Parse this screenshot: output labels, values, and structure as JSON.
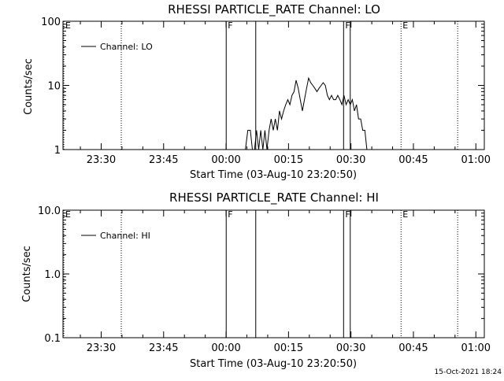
{
  "footer": "15-Oct-2021 18:24",
  "chart_data": [
    {
      "type": "line",
      "title": "RHESSI PARTICLE_RATE Channel: LO",
      "ylabel": "Counts/sec",
      "xlabel": "Start Time (03-Aug-10 23:20:50)",
      "yscale": "log",
      "ylim": [
        1,
        100
      ],
      "yticks": [
        {
          "value": 1,
          "label": "1"
        },
        {
          "value": 10,
          "label": "10"
        },
        {
          "value": 100,
          "label": "100"
        }
      ],
      "xlim_minutes": [
        0,
        101.2
      ],
      "xticks": [
        {
          "value": 9.17,
          "label": "23:30"
        },
        {
          "value": 24.17,
          "label": "23:45"
        },
        {
          "value": 39.17,
          "label": "00:00"
        },
        {
          "value": 54.17,
          "label": "00:15"
        },
        {
          "value": 69.17,
          "label": "00:30"
        },
        {
          "value": 84.17,
          "label": "00:45"
        },
        {
          "value": 99.17,
          "label": "01:00"
        }
      ],
      "legend": {
        "label": "Channel: LO",
        "position": "top-left"
      },
      "markers": [
        {
          "label": "E",
          "x": 0.2,
          "style": "dotted"
        },
        {
          "x": 14.0,
          "style": "dotted"
        },
        {
          "label": "F",
          "x": 39.2,
          "style": "solid"
        },
        {
          "x": 46.3,
          "style": "solid"
        },
        {
          "label": "F",
          "x": 67.4,
          "style": "solid"
        },
        {
          "x": 69.0,
          "style": "solid"
        },
        {
          "label": "E",
          "x": 81.2,
          "style": "dotted"
        },
        {
          "x": 94.8,
          "style": "dotted"
        }
      ],
      "series": [
        {
          "name": "Channel: LO",
          "x": [
            43.8,
            44.4,
            45.0,
            45.5,
            46.0,
            46.5,
            47.0,
            47.5,
            48.0,
            48.5,
            49.0,
            49.5,
            50.0,
            50.5,
            51.0,
            51.5,
            52.0,
            52.5,
            53.0,
            53.5,
            54.0,
            54.5,
            55.0,
            55.5,
            56.0,
            56.5,
            57.0,
            57.5,
            58.0,
            58.5,
            59.0,
            59.5,
            60.0,
            60.5,
            61.0,
            61.5,
            62.0,
            62.5,
            63.0,
            63.5,
            64.0,
            64.5,
            65.0,
            65.5,
            66.0,
            66.5,
            67.0,
            67.5,
            68.0,
            68.5,
            69.0,
            69.5,
            70.0,
            70.5,
            71.0,
            71.5,
            72.0,
            72.5,
            73.0,
            73.5,
            74.0
          ],
          "values": [
            1,
            2,
            2,
            1,
            1,
            2,
            1,
            2,
            1,
            2,
            1,
            2,
            3,
            2,
            3,
            2,
            4,
            3,
            4,
            5,
            6,
            5,
            7,
            8,
            12,
            9,
            6,
            4,
            6,
            9,
            13,
            11,
            10,
            9,
            8,
            9,
            10,
            11,
            10,
            7,
            6,
            7,
            6,
            6,
            7,
            6,
            5,
            7,
            5,
            6,
            5,
            6,
            4,
            5,
            3,
            3,
            2,
            2,
            1,
            1,
            1
          ]
        }
      ]
    },
    {
      "type": "line",
      "title": "RHESSI PARTICLE_RATE Channel: HI",
      "ylabel": "Counts/sec",
      "xlabel": "Start Time (03-Aug-10 23:20:50)",
      "yscale": "log",
      "ylim": [
        0.1,
        10
      ],
      "yticks": [
        {
          "value": 0.1,
          "label": "0.1"
        },
        {
          "value": 1,
          "label": "1.0"
        },
        {
          "value": 10,
          "label": "10.0"
        }
      ],
      "xlim_minutes": [
        0,
        101.2
      ],
      "xticks": [
        {
          "value": 9.17,
          "label": "23:30"
        },
        {
          "value": 24.17,
          "label": "23:45"
        },
        {
          "value": 39.17,
          "label": "00:00"
        },
        {
          "value": 54.17,
          "label": "00:15"
        },
        {
          "value": 69.17,
          "label": "00:30"
        },
        {
          "value": 84.17,
          "label": "00:45"
        },
        {
          "value": 99.17,
          "label": "01:00"
        }
      ],
      "legend": {
        "label": "Channel: HI",
        "position": "top-left"
      },
      "markers": [
        {
          "label": "E",
          "x": 0.2,
          "style": "dotted"
        },
        {
          "x": 14.0,
          "style": "dotted"
        },
        {
          "label": "F",
          "x": 39.2,
          "style": "solid"
        },
        {
          "x": 46.3,
          "style": "solid"
        },
        {
          "label": "F",
          "x": 67.4,
          "style": "solid"
        },
        {
          "x": 69.0,
          "style": "solid"
        },
        {
          "label": "E",
          "x": 81.2,
          "style": "dotted"
        },
        {
          "x": 94.8,
          "style": "dotted"
        }
      ],
      "series": [
        {
          "name": "Channel: HI",
          "x": [],
          "values": []
        }
      ]
    }
  ]
}
